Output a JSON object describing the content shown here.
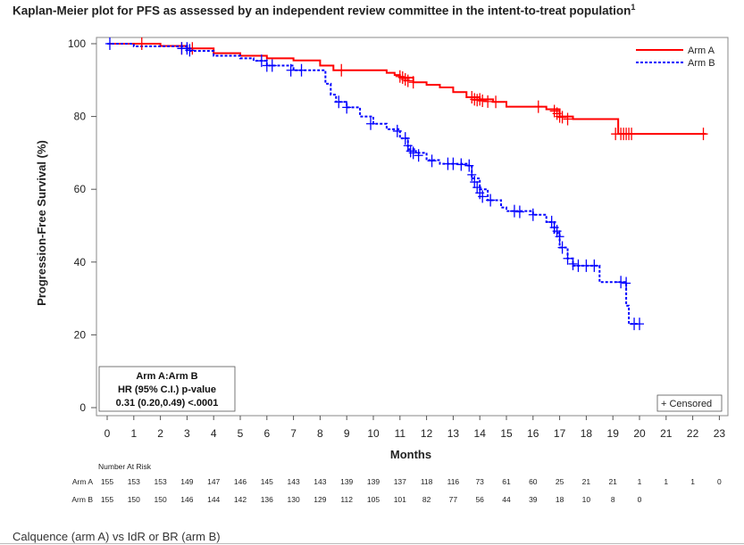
{
  "title": "Kaplan-Meier plot for PFS as assessed by an independent review committee in the intent-to-treat population",
  "title_superscript": "1",
  "caption": "Calquence (arm A) vs IdR or BR (arm B)",
  "chart_data": {
    "type": "line",
    "subtype": "kaplan-meier",
    "xlabel": "Months",
    "ylabel": "Progression-Free Survival (%)",
    "xlim": [
      0,
      23
    ],
    "ylim": [
      0,
      100
    ],
    "xticks": [
      0,
      1,
      2,
      3,
      4,
      5,
      6,
      7,
      8,
      9,
      10,
      11,
      12,
      13,
      14,
      15,
      16,
      17,
      18,
      19,
      20,
      21,
      22,
      23
    ],
    "yticks": [
      0,
      20,
      40,
      60,
      80,
      100
    ],
    "legend_position": "top-right",
    "series": [
      {
        "name": "Arm A",
        "color": "#ff0000",
        "style": "solid",
        "steps": [
          [
            0,
            100
          ],
          [
            2,
            99.4
          ],
          [
            3,
            98.7
          ],
          [
            4,
            97.4
          ],
          [
            5,
            96.7
          ],
          [
            6,
            96
          ],
          [
            7,
            95.4
          ],
          [
            8,
            94
          ],
          [
            8.5,
            92.7
          ],
          [
            9,
            92.7
          ],
          [
            10,
            92.7
          ],
          [
            10.5,
            92
          ],
          [
            10.8,
            91.4
          ],
          [
            11,
            90.7
          ],
          [
            11.5,
            89.4
          ],
          [
            12,
            88.7
          ],
          [
            12.5,
            88
          ],
          [
            13,
            86.7
          ],
          [
            13.5,
            85.3
          ],
          [
            14,
            84.7
          ],
          [
            14.5,
            84
          ],
          [
            15,
            82.7
          ],
          [
            16,
            82.7
          ],
          [
            16.5,
            82
          ],
          [
            17,
            80
          ],
          [
            17.5,
            79.3
          ],
          [
            18,
            79.3
          ],
          [
            19,
            79.3
          ],
          [
            19.2,
            75.2
          ],
          [
            22.5,
            75.2
          ]
        ],
        "censored": [
          [
            1.3,
            100
          ],
          [
            2.8,
            98.7
          ],
          [
            3.2,
            98.7
          ],
          [
            8.8,
            92.7
          ],
          [
            11,
            91
          ],
          [
            11.1,
            90.7
          ],
          [
            11.2,
            90.2
          ],
          [
            11.3,
            89.8
          ],
          [
            11.5,
            89.4
          ],
          [
            13.7,
            85.3
          ],
          [
            13.8,
            84.7
          ],
          [
            13.9,
            84.5
          ],
          [
            14,
            84.7
          ],
          [
            14.1,
            84.3
          ],
          [
            14.3,
            84.1
          ],
          [
            14.6,
            84
          ],
          [
            16.2,
            82.7
          ],
          [
            16.8,
            81.5
          ],
          [
            16.9,
            80.8
          ],
          [
            17,
            80
          ],
          [
            17.1,
            79.8
          ],
          [
            17.3,
            79.3
          ],
          [
            19.1,
            75.2
          ],
          [
            19.3,
            75.2
          ],
          [
            19.4,
            75.2
          ],
          [
            19.5,
            75.2
          ],
          [
            19.6,
            75.2
          ],
          [
            19.7,
            75.2
          ],
          [
            22.4,
            75.2
          ]
        ]
      },
      {
        "name": "Arm B",
        "color": "#0000ff",
        "style": "dashed",
        "steps": [
          [
            0,
            100
          ],
          [
            1,
            99.3
          ],
          [
            3,
            98
          ],
          [
            4,
            96.7
          ],
          [
            5,
            96
          ],
          [
            5.5,
            95.3
          ],
          [
            6,
            94
          ],
          [
            7,
            92.7
          ],
          [
            8,
            92.7
          ],
          [
            8.2,
            89
          ],
          [
            8.4,
            86
          ],
          [
            8.6,
            84
          ],
          [
            9,
            82.5
          ],
          [
            9.5,
            80
          ],
          [
            10,
            78
          ],
          [
            10.5,
            76.5
          ],
          [
            11,
            74
          ],
          [
            11.3,
            71
          ],
          [
            11.6,
            70
          ],
          [
            12,
            68
          ],
          [
            12.5,
            67
          ],
          [
            13,
            67
          ],
          [
            13.5,
            66.5
          ],
          [
            13.7,
            63
          ],
          [
            14,
            60
          ],
          [
            14.3,
            57
          ],
          [
            14.8,
            55
          ],
          [
            15,
            54
          ],
          [
            15.5,
            54
          ],
          [
            16,
            53
          ],
          [
            16.5,
            51
          ],
          [
            16.8,
            48
          ],
          [
            17,
            44
          ],
          [
            17.3,
            41
          ],
          [
            17.5,
            39
          ],
          [
            18,
            39
          ],
          [
            18.5,
            34.5
          ],
          [
            19,
            34.5
          ],
          [
            19.4,
            34.5
          ],
          [
            19.5,
            28
          ],
          [
            19.6,
            23
          ],
          [
            20,
            23
          ]
        ],
        "censored": [
          [
            0.1,
            100
          ],
          [
            2.8,
            98.7
          ],
          [
            3.0,
            98.7
          ],
          [
            3.1,
            98.2
          ],
          [
            5.8,
            95.3
          ],
          [
            6.0,
            94
          ],
          [
            6.2,
            94
          ],
          [
            6.9,
            92.7
          ],
          [
            7.3,
            92.7
          ],
          [
            8.7,
            84
          ],
          [
            9,
            82.5
          ],
          [
            9.9,
            78
          ],
          [
            10.9,
            76
          ],
          [
            11.2,
            74
          ],
          [
            11.3,
            72
          ],
          [
            11.4,
            70.5
          ],
          [
            11.5,
            70
          ],
          [
            11.7,
            69.3
          ],
          [
            12.2,
            67.8
          ],
          [
            12.8,
            67
          ],
          [
            13,
            67
          ],
          [
            13.3,
            66.8
          ],
          [
            13.6,
            66.5
          ],
          [
            13.7,
            64
          ],
          [
            13.8,
            62
          ],
          [
            13.9,
            60.5
          ],
          [
            14,
            59
          ],
          [
            14.1,
            58
          ],
          [
            14.4,
            57
          ],
          [
            15.3,
            54
          ],
          [
            15.5,
            53.8
          ],
          [
            16,
            53
          ],
          [
            16.7,
            51
          ],
          [
            16.8,
            49.5
          ],
          [
            16.9,
            48.5
          ],
          [
            17,
            47
          ],
          [
            17.1,
            44
          ],
          [
            17.3,
            41
          ],
          [
            17.5,
            39.5
          ],
          [
            17.7,
            39
          ],
          [
            18,
            39
          ],
          [
            18.3,
            39
          ],
          [
            19.3,
            34.5
          ],
          [
            19.5,
            34.2
          ],
          [
            19.8,
            23
          ],
          [
            20,
            23
          ]
        ]
      }
    ],
    "censored_legend": "+ Censored",
    "inset": {
      "line1": "Arm A:Arm B",
      "line2": "HR (95% C.I.)  p-value",
      "line3": "0.31 (0.20,0.49)  <.0001"
    },
    "risk_table": {
      "title": "Number At Risk",
      "rows": [
        {
          "label": "Arm A",
          "values": [
            155,
            153,
            153,
            149,
            147,
            146,
            145,
            143,
            143,
            139,
            139,
            137,
            118,
            116,
            73,
            61,
            60,
            25,
            21,
            21,
            1,
            1,
            1,
            0
          ]
        },
        {
          "label": "Arm B",
          "values": [
            155,
            150,
            150,
            146,
            144,
            142,
            136,
            130,
            129,
            112,
            105,
            101,
            82,
            77,
            56,
            44,
            39,
            18,
            10,
            8,
            0
          ]
        }
      ]
    }
  }
}
